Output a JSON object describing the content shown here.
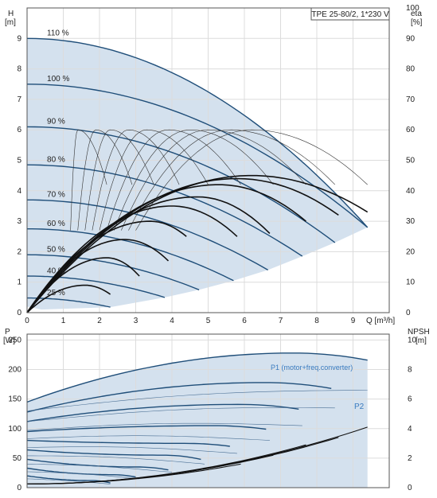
{
  "chart_data": [
    {
      "type": "line",
      "title": "TPE 25-80/2, 1*230 V",
      "x_axis": {
        "label": "Q [m³/h]",
        "min": 0,
        "max": 10,
        "ticks": [
          "0",
          "1",
          "2",
          "3",
          "4",
          "5",
          "6",
          "7",
          "8",
          "9"
        ]
      },
      "y_axis_left": {
        "label_top": "H",
        "label_unit": "[m]",
        "min": 0,
        "max": 10,
        "ticks": [
          "0",
          "1",
          "2",
          "3",
          "4",
          "5",
          "6",
          "7",
          "8",
          "9"
        ]
      },
      "y_axis_right": {
        "label_top": "eta",
        "label_unit": "[%]",
        "min": 0,
        "max": 100,
        "ticks": [
          "0",
          "10",
          "20",
          "30",
          "40",
          "50",
          "60",
          "70",
          "80",
          "90",
          "100"
        ]
      },
      "grid": true,
      "operating_area_color": "#d4e1ee",
      "series_color": "#1f4e79",
      "speed_curves": [
        {
          "label": "110 %",
          "h0": 9.0,
          "qmax": 9.4,
          "hend": 2.8
        },
        {
          "label": "100 %",
          "h0": 7.5,
          "qmax": 9.4,
          "hend": 2.8
        },
        {
          "label": "90 %",
          "h0": 6.1,
          "qmax": 8.5,
          "hend": 2.3
        },
        {
          "label": "80 %",
          "h0": 4.85,
          "qmax": 7.6,
          "hend": 1.85
        },
        {
          "label": "70 %",
          "h0": 3.7,
          "qmax": 6.65,
          "hend": 1.4
        },
        {
          "label": "60 %",
          "h0": 2.75,
          "qmax": 5.7,
          "hend": 1.05
        },
        {
          "label": "50 %",
          "h0": 1.9,
          "qmax": 4.75,
          "hend": 0.75
        },
        {
          "label": "40 %",
          "h0": 1.2,
          "qmax": 3.8,
          "hend": 0.5
        },
        {
          "label": "25 %",
          "h0": 0.48,
          "qmax": 2.3,
          "hend": 0.18
        }
      ],
      "efficiency_curves_eta_percent": [
        {
          "qpeak": 6.2,
          "peak": 45,
          "qend": 9.4,
          "eend": 33
        },
        {
          "qpeak": 5.8,
          "peak": 44,
          "qend": 8.6,
          "eend": 32
        },
        {
          "qpeak": 5.3,
          "peak": 42,
          "qend": 7.7,
          "eend": 30
        },
        {
          "qpeak": 4.7,
          "peak": 38,
          "qend": 6.7,
          "eend": 26
        },
        {
          "qpeak": 4.0,
          "peak": 35,
          "qend": 5.8,
          "eend": 25
        },
        {
          "qpeak": 3.4,
          "peak": 30,
          "qend": 4.4,
          "eend": 25
        },
        {
          "qpeak": 2.7,
          "peak": 24,
          "qend": 3.9,
          "eend": 17
        },
        {
          "qpeak": 2.2,
          "peak": 18,
          "qend": 3.1,
          "eend": 12
        },
        {
          "qpeak": 1.6,
          "peak": 9,
          "qend": 2.3,
          "eend": 6
        }
      ],
      "thin_efficiency_curves_eta_percent": [
        {
          "q0": 1.2,
          "qpeak": 1.4,
          "qend": 2.2,
          "peak": 60
        },
        {
          "q0": 1.4,
          "qpeak": 1.9,
          "qend": 2.9,
          "peak": 60
        },
        {
          "q0": 1.6,
          "qpeak": 2.3,
          "qend": 3.5,
          "peak": 60
        },
        {
          "q0": 1.8,
          "qpeak": 2.8,
          "qend": 4.2,
          "peak": 60
        },
        {
          "q0": 2.0,
          "qpeak": 3.3,
          "qend": 5.0,
          "peak": 60
        },
        {
          "q0": 2.2,
          "qpeak": 3.9,
          "qend": 5.9,
          "peak": 60
        },
        {
          "q0": 2.4,
          "qpeak": 4.5,
          "qend": 6.8,
          "peak": 60
        },
        {
          "q0": 2.6,
          "qpeak": 5.0,
          "qend": 7.7,
          "peak": 60
        },
        {
          "q0": 2.8,
          "qpeak": 5.6,
          "qend": 8.5,
          "peak": 60
        },
        {
          "q0": 3.0,
          "qpeak": 6.2,
          "qend": 9.4,
          "peak": 60
        }
      ]
    },
    {
      "type": "line",
      "x_axis": {
        "min": 0,
        "max": 10
      },
      "y_axis_left": {
        "label_top": "P",
        "label_unit": "[W]",
        "min": 0,
        "max": 260,
        "ticks": [
          "0",
          "50",
          "100",
          "150",
          "200",
          "250"
        ]
      },
      "y_axis_right": {
        "label_top": "NPSH",
        "label_unit": "[m]",
        "min": 0,
        "max": 10.4,
        "ticks": [
          "0",
          "2",
          "4",
          "6",
          "8",
          "10"
        ]
      },
      "grid": true,
      "annotations": [
        "P1 (motor+freq.converter)",
        "P2"
      ],
      "power_curves_w": [
        {
          "p0": 145,
          "pmax": 228,
          "qend": 9.4,
          "pend": 216
        },
        {
          "p0": 128,
          "pmax": 178,
          "qend": 8.4,
          "pend": 168
        },
        {
          "p0": 112,
          "pmax": 141,
          "qend": 7.5,
          "pend": 133
        },
        {
          "p0": 95,
          "pmax": 105,
          "qend": 6.6,
          "pend": 99
        },
        {
          "p0": 80,
          "pmax": 75,
          "qend": 5.6,
          "pend": 70
        },
        {
          "p0": 64,
          "pmax": 55,
          "qend": 4.8,
          "pend": 48
        },
        {
          "p0": 48,
          "pmax": 35,
          "qend": 3.9,
          "pend": 30
        },
        {
          "p0": 33,
          "pmax": 22,
          "qend": 3.0,
          "pend": 18
        },
        {
          "p0": 20,
          "pmax": 12,
          "qend": 2.3,
          "pend": 8
        }
      ],
      "p2_curves_w": [
        {
          "p0": 130,
          "qend": 9.4,
          "pend": 165
        },
        {
          "p0": 112,
          "qend": 8.5,
          "pend": 135
        },
        {
          "p0": 97,
          "qend": 7.6,
          "pend": 105
        },
        {
          "p0": 83,
          "qend": 6.7,
          "pend": 80
        },
        {
          "p0": 68,
          "qend": 5.8,
          "pend": 58
        },
        {
          "p0": 54,
          "qend": 4.9,
          "pend": 40
        },
        {
          "p0": 40,
          "qend": 4.0,
          "pend": 26
        },
        {
          "p0": 27,
          "qend": 3.1,
          "pend": 15
        },
        {
          "p0": 15,
          "qend": 2.3,
          "pend": 6
        }
      ],
      "npsh_curves_m": [
        {
          "qend": 9.4,
          "nend": 4.1
        },
        {
          "qend": 8.6,
          "nend": 3.4
        },
        {
          "qend": 7.7,
          "nend": 2.9
        },
        {
          "qend": 6.8,
          "nend": 2.2
        },
        {
          "qend": 5.9,
          "nend": 1.6
        }
      ]
    }
  ]
}
